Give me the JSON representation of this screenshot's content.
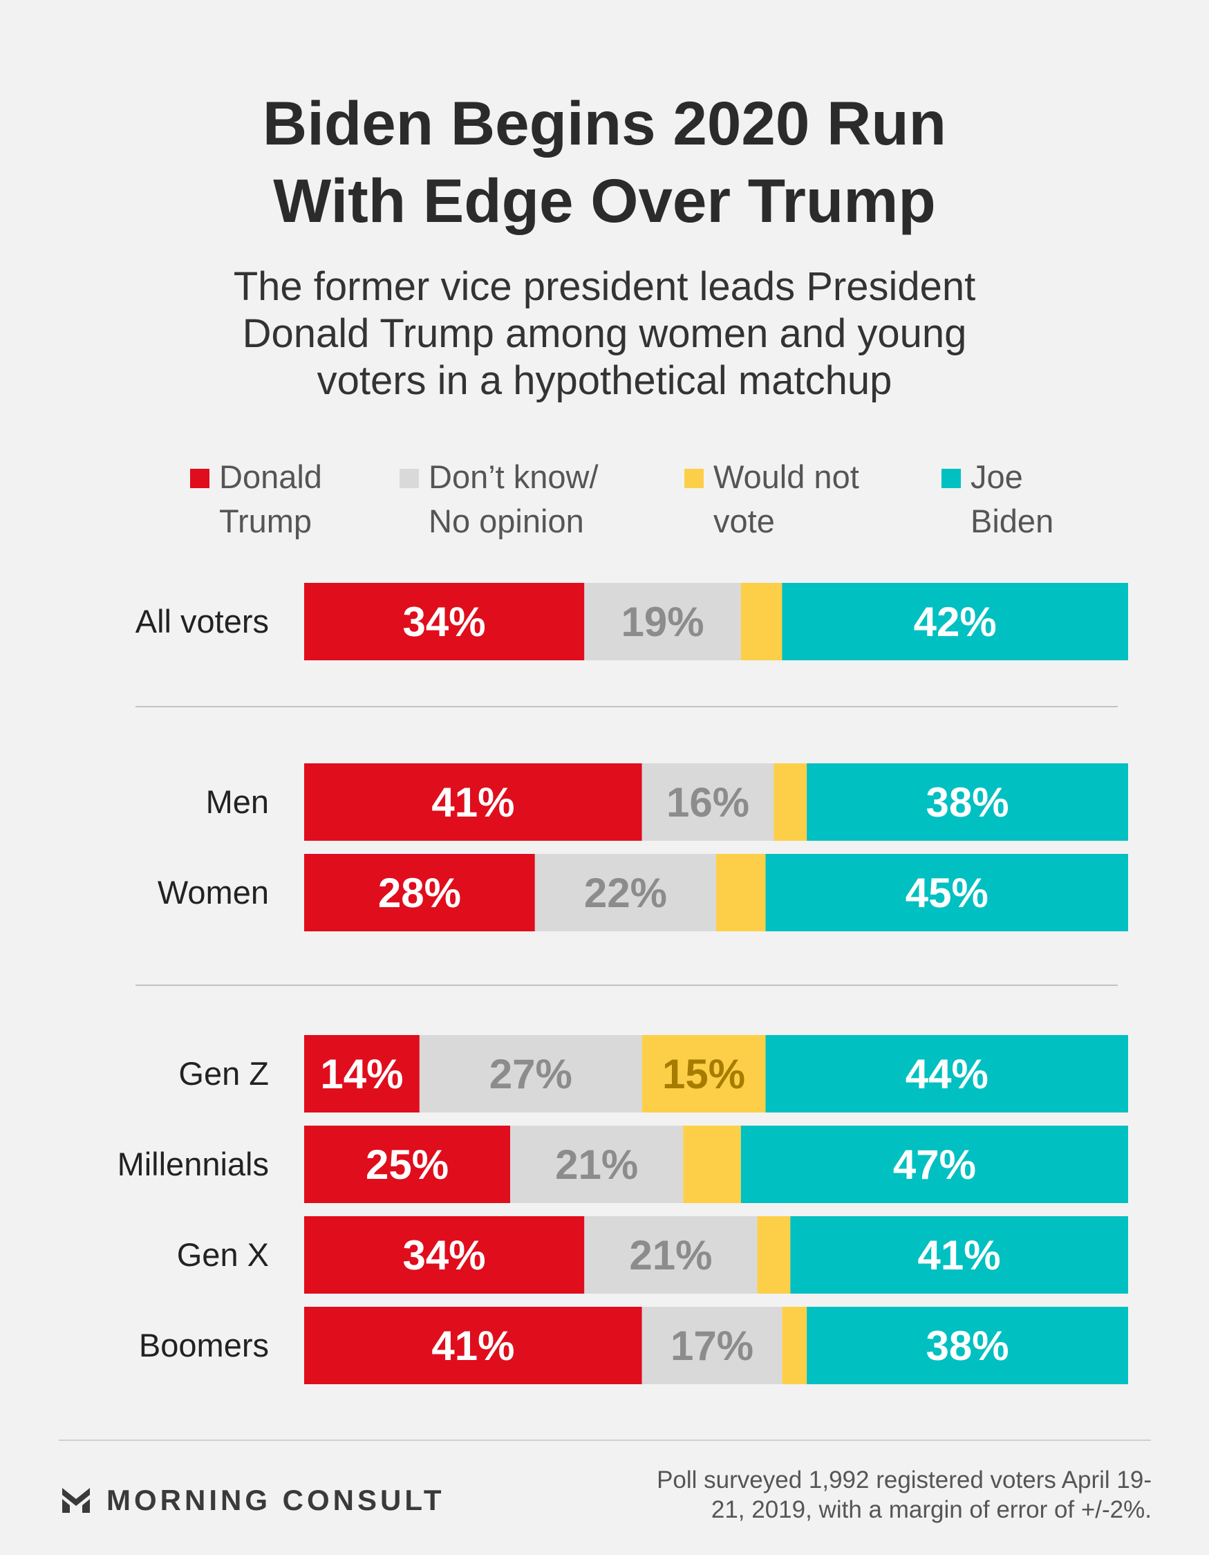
{
  "title_line1": "Biden Begins 2020 Run",
  "title_line2": "With Edge Over Trump",
  "subtitle_line1": "The former vice president leads President",
  "subtitle_line2": "Donald Trump among women and young",
  "subtitle_line3": "voters in a hypothetical matchup",
  "legend": [
    {
      "line1": "Donald",
      "line2": "Trump",
      "color": "#e00d1c"
    },
    {
      "line1": "Don’t know/",
      "line2": "No opinion",
      "color": "#d9d9d9"
    },
    {
      "line1": "Would not",
      "line2": "vote",
      "color": "#fdcf48"
    },
    {
      "line1": "Joe",
      "line2": "Biden",
      "color": "#00c0c1"
    }
  ],
  "chart_data": {
    "type": "bar",
    "orientation": "horizontal",
    "stacked": true,
    "categories": [
      "All voters",
      "Men",
      "Women",
      "Gen Z",
      "Millennials",
      "Gen X",
      "Boomers"
    ],
    "groups": [
      [
        "All voters"
      ],
      [
        "Men",
        "Women"
      ],
      [
        "Gen Z",
        "Millennials",
        "Gen X",
        "Boomers"
      ]
    ],
    "series": [
      {
        "name": "Donald Trump",
        "color": "#e00d1c",
        "label_color": "#ffffff",
        "values": [
          34,
          41,
          28,
          14,
          25,
          34,
          41
        ],
        "labels": [
          "34%",
          "41%",
          "28%",
          "14%",
          "25%",
          "34%",
          "41%"
        ]
      },
      {
        "name": "Don’t know/ No opinion",
        "color": "#d9d9d9",
        "label_color": "#8c8c8c",
        "values": [
          19,
          16,
          22,
          27,
          21,
          21,
          17
        ],
        "labels": [
          "19%",
          "16%",
          "22%",
          "27%",
          "21%",
          "21%",
          "17%"
        ]
      },
      {
        "name": "Would not vote",
        "color": "#fdcf48",
        "label_color": "#a67c00",
        "values": [
          5,
          4,
          6,
          15,
          7,
          4,
          3
        ],
        "labels": [
          "",
          "",
          "",
          "15%",
          "",
          "",
          ""
        ]
      },
      {
        "name": "Joe Biden",
        "color": "#00c0c1",
        "label_color": "#ffffff",
        "values": [
          42,
          38,
          45,
          44,
          47,
          41,
          38
        ],
        "labels": [
          "42%",
          "38%",
          "45%",
          "44%",
          "47%",
          "41%",
          "38%"
        ]
      }
    ],
    "xlim": [
      0,
      100
    ]
  },
  "brand": "MORNING CONSULT",
  "note_line1": "Poll surveyed 1,992 registered voters April 19-",
  "note_line2": "21, 2019, with a margin of error of +/-2%."
}
